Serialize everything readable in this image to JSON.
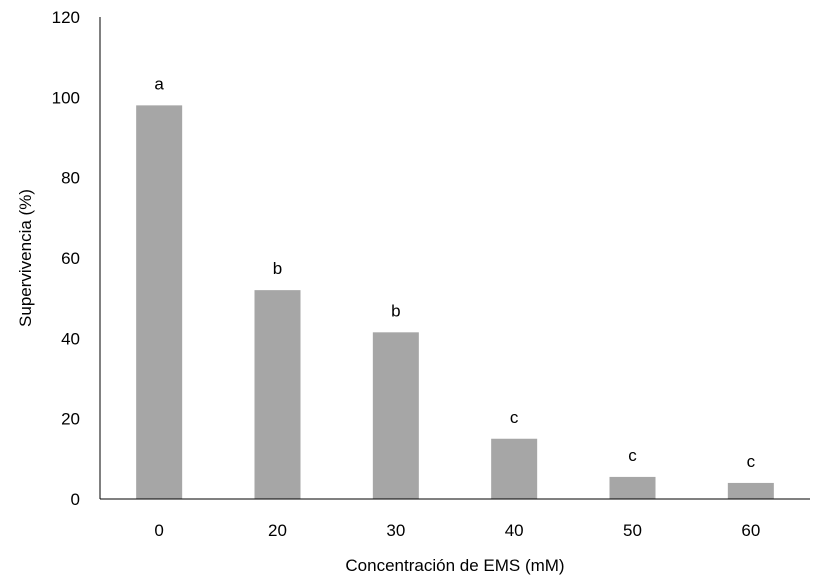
{
  "chart_data": {
    "type": "bar",
    "title": "",
    "xlabel": "Concentración  de EMS (mM)",
    "ylabel": "Supervivencia  (%)",
    "categories": [
      "0",
      "20",
      "30",
      "40",
      "50",
      "60"
    ],
    "values": [
      98,
      52,
      41.5,
      15,
      5.5,
      4
    ],
    "significance_labels": [
      "a",
      "b",
      "b",
      "c",
      "c",
      "c"
    ],
    "ylim": [
      0,
      120
    ],
    "yticks": [
      "0",
      "20",
      "40",
      "60",
      "80",
      "100",
      "120"
    ],
    "grid": false,
    "bar_color": "#a6a6a6"
  }
}
